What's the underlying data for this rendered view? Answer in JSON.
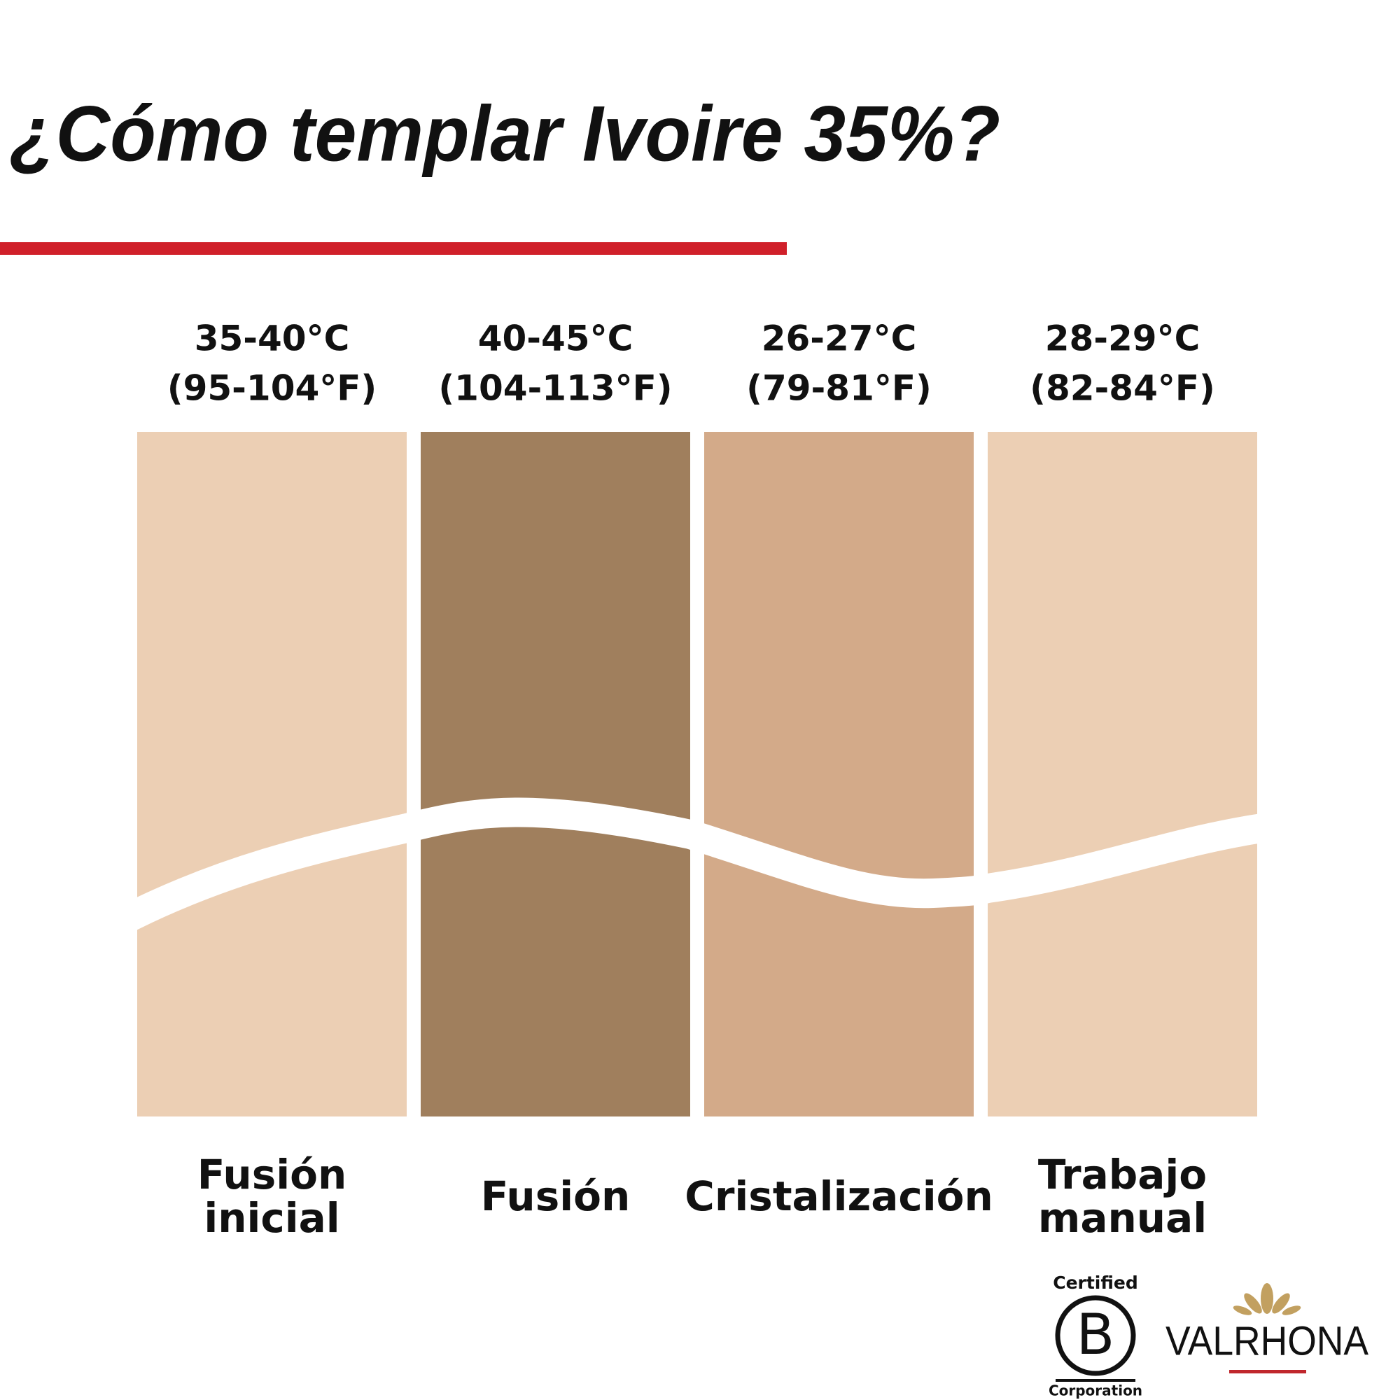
{
  "title": "¿Cómo templar Ivoire 35%?",
  "steps": [
    {
      "temp_c": "35-40°C",
      "temp_f": "(95-104°F)",
      "label": [
        "Fusión",
        "inicial"
      ]
    },
    {
      "temp_c": "40-45°C",
      "temp_f": "(104-113°F)",
      "label": [
        "Fusión"
      ]
    },
    {
      "temp_c": "26-27°C",
      "temp_f": "(79-81°F)",
      "label": [
        "Cristalización"
      ]
    },
    {
      "temp_c": "28-29°C",
      "temp_f": "(82-84°F)",
      "label": [
        "Trabajo",
        "manual"
      ]
    }
  ],
  "logos": {
    "b_corp": {
      "top": "Certified",
      "letter": "B",
      "bottom": "Corporation"
    },
    "brand": "VALRHONA"
  }
}
